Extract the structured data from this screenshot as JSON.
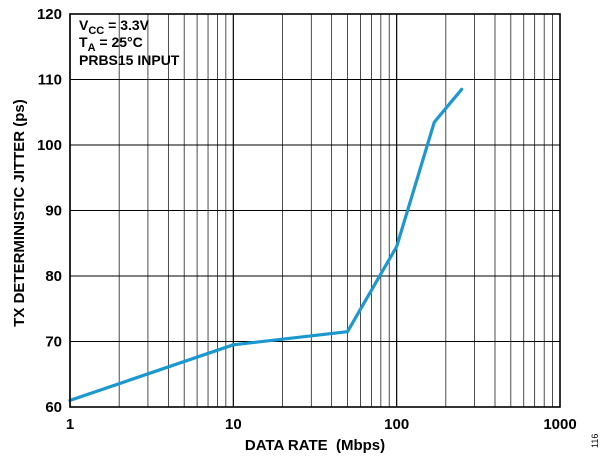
{
  "chart_data": {
    "type": "line",
    "xlabel": "DATA RATE  (Mbps)",
    "ylabel": "TX DETERMINISTIC JITTER (ps)",
    "x_scale": "log",
    "xlim": [
      1,
      1000
    ],
    "ylim": [
      60,
      120
    ],
    "x_ticks": [
      "1",
      "10",
      "100",
      "1000"
    ],
    "y_ticks": [
      "60",
      "70",
      "80",
      "90",
      "100",
      "110",
      "120"
    ],
    "grid": true,
    "line_color": "#1b98d0",
    "annotations": {
      "vcc": {
        "main": "V",
        "sub": "CC",
        "rest": " = 3.3V"
      },
      "ta": {
        "main": "T",
        "sub": "A",
        "rest": " = 25°C"
      },
      "input": "PRBS15 INPUT"
    },
    "figure_id": "116",
    "series": [
      {
        "x": [
          1,
          10,
          50,
          100,
          170,
          250
        ],
        "y": [
          61,
          69.5,
          71.5,
          84.5,
          103.5,
          108.5
        ]
      }
    ]
  }
}
